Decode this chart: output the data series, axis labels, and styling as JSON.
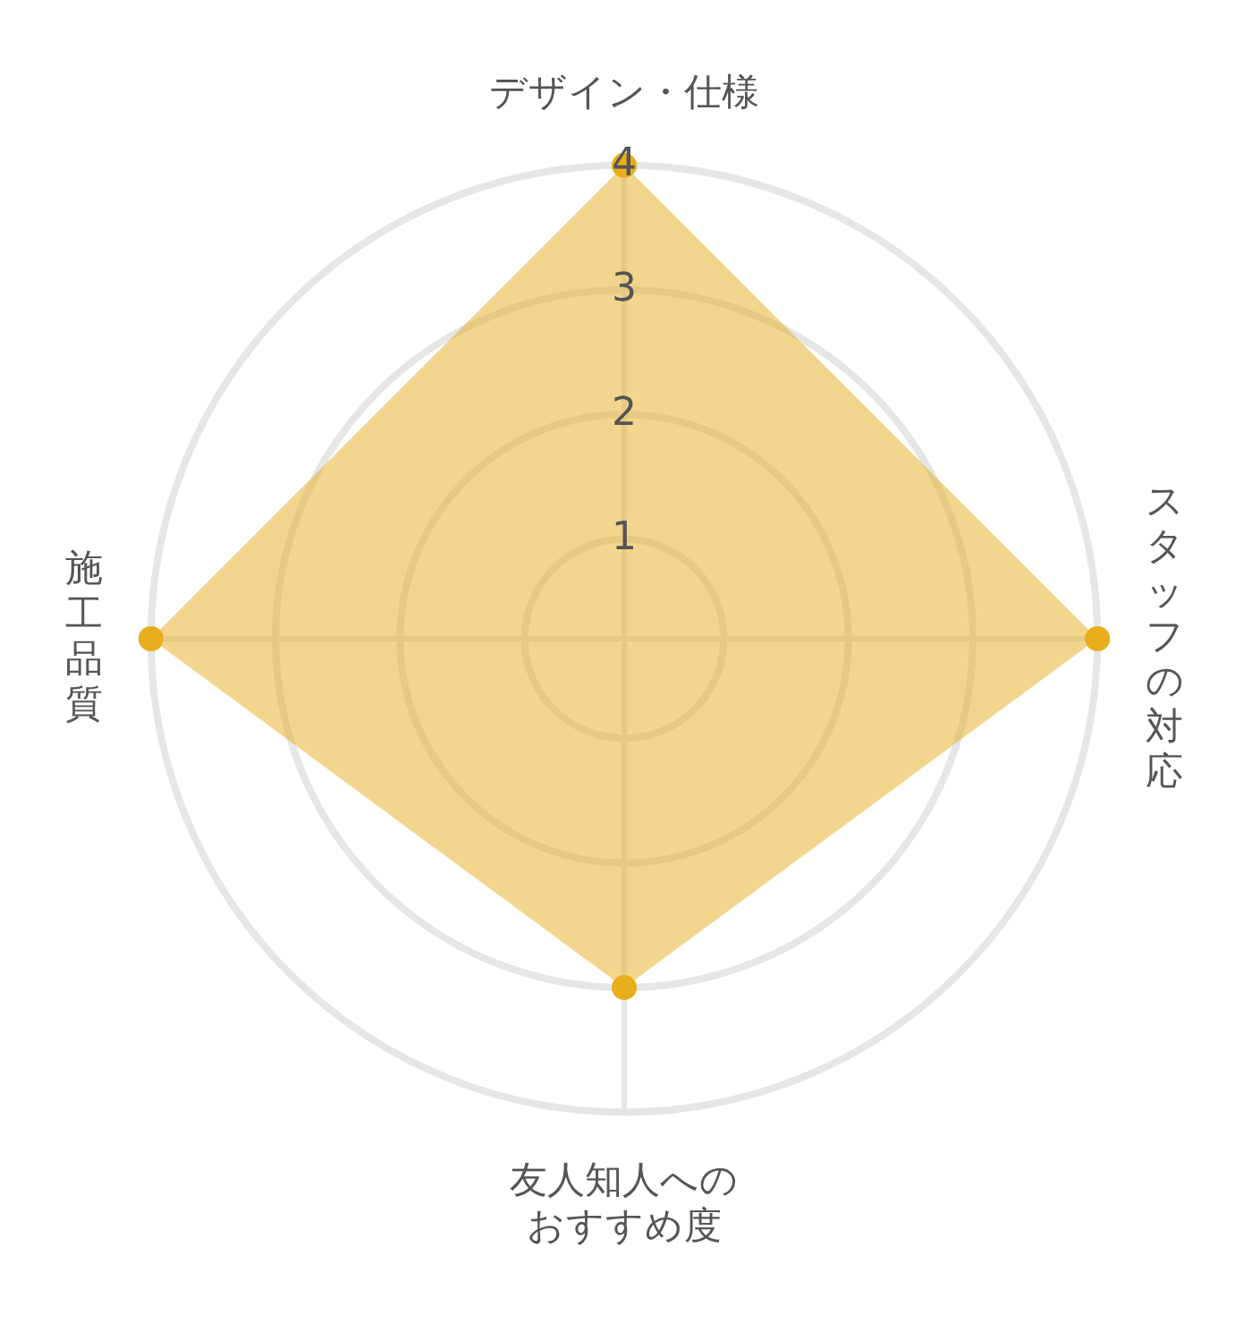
{
  "chart_data": {
    "type": "radar",
    "categories": [
      "デザイン・仕様",
      "スタッフの対応",
      "友人知人へのおすすめ度",
      "施工品質"
    ],
    "series": [
      {
        "color": "#e8ae1c",
        "values": [
          4,
          4,
          3,
          4
        ]
      }
    ],
    "ylim": [
      0.2,
      4
    ],
    "yticks": [
      1,
      2,
      3,
      4
    ],
    "grid": true,
    "legend": false,
    "marker": "circle"
  }
}
